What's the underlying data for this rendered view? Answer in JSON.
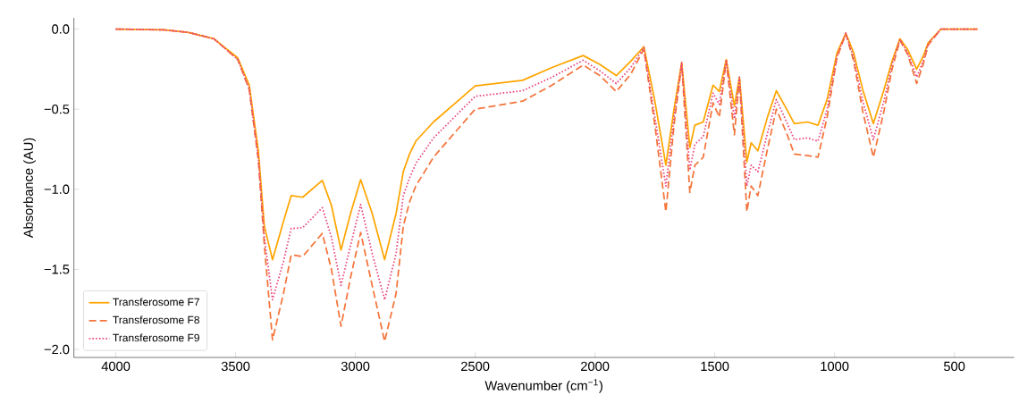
{
  "chart_data": {
    "type": "line",
    "xlabel": "Wavenumber (cm$^{−1}$)",
    "ylabel": "Absorbance (AU)",
    "x": [
      4000,
      3800,
      3700,
      3591,
      3491,
      3443,
      3405,
      3380,
      3346,
      3300,
      3268,
      3220,
      3138,
      3100,
      3060,
      3020,
      2978,
      2930,
      2878,
      2830,
      2800,
      2774,
      2748,
      2674,
      2500,
      2302,
      2179,
      2049,
      1980,
      1911,
      1850,
      1796,
      1750,
      1704,
      1670,
      1638,
      1604,
      1583,
      1548,
      1507,
      1481,
      1452,
      1418,
      1397,
      1366,
      1348,
      1320,
      1280,
      1243,
      1200,
      1168,
      1113,
      1069,
      1031,
      990,
      953,
      920,
      882,
      838,
      794,
      760,
      727,
      694,
      657,
      630,
      609,
      556,
      500,
      404
    ],
    "series": [
      {
        "name": "Transferosome F7",
        "color": "#ffa500",
        "line_style": "solid",
        "values": [
          0,
          -0.005,
          -0.02,
          -0.06,
          -0.18,
          -0.35,
          -0.76,
          -1.23,
          -1.44,
          -1.2,
          -1.04,
          -1.05,
          -0.945,
          -1.1,
          -1.38,
          -1.15,
          -0.94,
          -1.15,
          -1.44,
          -1.15,
          -0.89,
          -0.78,
          -0.7,
          -0.58,
          -0.355,
          -0.32,
          -0.24,
          -0.165,
          -0.22,
          -0.29,
          -0.2,
          -0.11,
          -0.45,
          -0.85,
          -0.5,
          -0.21,
          -0.74,
          -0.6,
          -0.58,
          -0.35,
          -0.39,
          -0.19,
          -0.48,
          -0.3,
          -0.83,
          -0.71,
          -0.76,
          -0.55,
          -0.385,
          -0.5,
          -0.59,
          -0.58,
          -0.6,
          -0.44,
          -0.15,
          -0.025,
          -0.15,
          -0.38,
          -0.59,
          -0.38,
          -0.2,
          -0.06,
          -0.13,
          -0.25,
          -0.17,
          -0.085,
          0,
          0,
          0
        ]
      },
      {
        "name": "Transferosome F8",
        "color": "#f4743b",
        "line_style": "dashed",
        "values": [
          0,
          -0.005,
          -0.02,
          -0.06,
          -0.19,
          -0.38,
          -0.82,
          -1.35,
          -1.94,
          -1.65,
          -1.41,
          -1.42,
          -1.275,
          -1.5,
          -1.855,
          -1.55,
          -1.27,
          -1.6,
          -1.95,
          -1.65,
          -1.23,
          -1.08,
          -0.98,
          -0.8,
          -0.5,
          -0.45,
          -0.35,
          -0.225,
          -0.29,
          -0.39,
          -0.28,
          -0.125,
          -0.6,
          -1.14,
          -0.6,
          -0.22,
          -1.02,
          -0.85,
          -0.8,
          -0.46,
          -0.55,
          -0.2,
          -0.66,
          -0.31,
          -1.14,
          -0.98,
          -1.04,
          -0.75,
          -0.5,
          -0.65,
          -0.78,
          -0.79,
          -0.8,
          -0.55,
          -0.18,
          -0.03,
          -0.2,
          -0.515,
          -0.8,
          -0.515,
          -0.25,
          -0.07,
          -0.16,
          -0.34,
          -0.22,
          -0.1,
          0,
          0,
          0
        ]
      },
      {
        "name": "Transferosome F9",
        "color": "#e8457a",
        "line_style": "dotted",
        "values": [
          0,
          -0.005,
          -0.02,
          -0.06,
          -0.19,
          -0.37,
          -0.8,
          -1.3,
          -1.69,
          -1.45,
          -1.245,
          -1.24,
          -1.115,
          -1.3,
          -1.6,
          -1.35,
          -1.095,
          -1.4,
          -1.69,
          -1.4,
          -1.04,
          -0.93,
          -0.84,
          -0.68,
          -0.42,
          -0.385,
          -0.3,
          -0.195,
          -0.26,
          -0.34,
          -0.24,
          -0.115,
          -0.55,
          -0.98,
          -0.55,
          -0.21,
          -0.88,
          -0.72,
          -0.67,
          -0.4,
          -0.47,
          -0.19,
          -0.56,
          -0.3,
          -0.98,
          -0.85,
          -0.89,
          -0.65,
          -0.44,
          -0.58,
          -0.69,
          -0.68,
          -0.7,
          -0.5,
          -0.17,
          -0.025,
          -0.18,
          -0.45,
          -0.69,
          -0.45,
          -0.22,
          -0.065,
          -0.15,
          -0.3,
          -0.2,
          -0.09,
          0,
          0,
          0
        ]
      }
    ],
    "xlim": [
      4175,
      250
    ],
    "ylim": [
      -2.05,
      0.07
    ],
    "xticks": [
      4000,
      3500,
      3000,
      2500,
      2000,
      1500,
      1000,
      500
    ],
    "yticks": [
      {
        "value": 0,
        "label": "0.0"
      },
      {
        "value": -0.5,
        "label": "−0.5"
      },
      {
        "value": -1,
        "label": "−1.0"
      },
      {
        "value": -1.5,
        "label": "−1.5"
      },
      {
        "value": -2,
        "label": "−2.0"
      }
    ],
    "legend": "bottom left",
    "grid": false
  }
}
